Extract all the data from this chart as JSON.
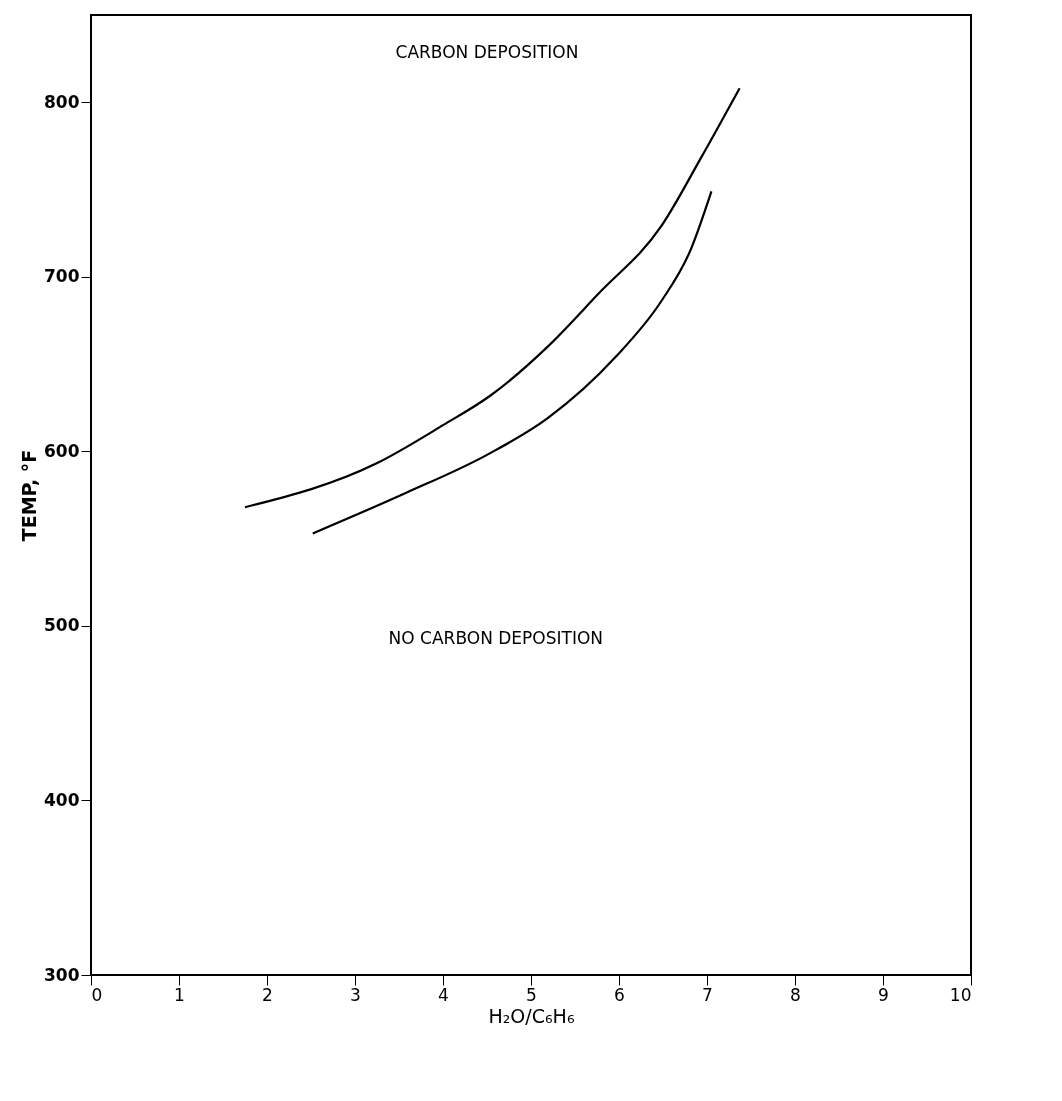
{
  "chart_data": {
    "type": "line",
    "xlabel": "H₂O/C₆H₆",
    "ylabel": "TEMP, °F",
    "xlim": [
      0,
      10
    ],
    "ylim": [
      300,
      850
    ],
    "xticks": [
      0,
      1,
      2,
      3,
      4,
      5,
      6,
      7,
      8,
      9,
      10
    ],
    "yticks": [
      300,
      400,
      500,
      600,
      700,
      800
    ],
    "grid": false,
    "marker": "none",
    "line_style": "solid",
    "series": [
      {
        "color": "#000000",
        "x": [
          1.75,
          3.24,
          4.0,
          4.54,
          5.19,
          5.76,
          6.48,
          6.93,
          7.37
        ],
        "values": [
          568,
          593,
          615,
          632,
          660,
          690,
          729,
          768,
          808
        ]
      },
      {
        "color": "#000000",
        "x": [
          2.52,
          3.57,
          4.5,
          5.19,
          5.96,
          6.48,
          6.81,
          7.05
        ],
        "values": [
          553,
          576,
          598,
          619,
          654,
          686,
          715,
          749
        ]
      }
    ],
    "annotations": [
      "CARBON DEPOSITION",
      "NO CARBON DEPOSITION"
    ]
  }
}
